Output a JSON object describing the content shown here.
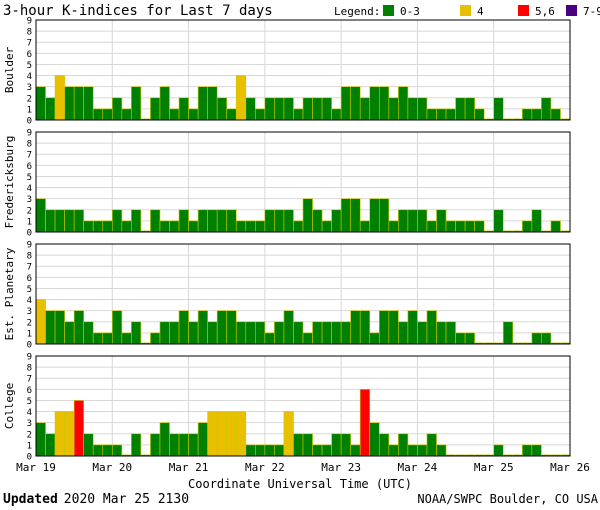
{
  "chart_data": {
    "type": "bar",
    "title": "3-hour K-indices for Last 7 days",
    "legend": {
      "label": "Legend:",
      "placement": "top-right",
      "entries": [
        {
          "label": "0-3",
          "color": "#008000"
        },
        {
          "label": "4",
          "color": "#e8c000"
        },
        {
          "label": "5,6",
          "color": "#ff0000"
        },
        {
          "label": "7-9",
          "color": "#4b0082"
        }
      ]
    },
    "ylim": [
      0,
      9
    ],
    "y_ticks": [
      "0",
      "1",
      "2",
      "3",
      "4",
      "5",
      "6",
      "7",
      "8",
      "9"
    ],
    "x_ticks": [
      "Mar 19",
      "Mar 20",
      "Mar 21",
      "Mar 22",
      "Mar 23",
      "Mar 24",
      "Mar 25",
      "Mar 26"
    ],
    "xlabel": "Coordinate Universal Time (UTC)",
    "bins_per_day": 8,
    "grid": true,
    "panels": [
      {
        "name": "Boulder",
        "values": [
          3,
          2,
          4,
          3,
          3,
          3,
          1,
          1,
          2,
          1,
          3,
          0,
          2,
          3,
          1,
          2,
          1,
          3,
          3,
          2,
          1,
          4,
          2,
          1,
          2,
          2,
          2,
          1,
          2,
          2,
          2,
          1,
          3,
          3,
          2,
          3,
          3,
          2,
          3,
          2,
          2,
          1,
          1,
          1,
          2,
          2,
          1,
          0,
          2,
          0,
          0,
          1,
          1,
          2,
          1,
          0
        ]
      },
      {
        "name": "Fredericksburg",
        "values": [
          3,
          2,
          2,
          2,
          2,
          1,
          1,
          1,
          2,
          1,
          2,
          0,
          2,
          1,
          1,
          2,
          1,
          2,
          2,
          2,
          2,
          1,
          1,
          1,
          2,
          2,
          2,
          1,
          3,
          2,
          1,
          2,
          3,
          3,
          1,
          3,
          3,
          1,
          2,
          2,
          2,
          1,
          2,
          1,
          1,
          1,
          1,
          0,
          2,
          0,
          0,
          1,
          2,
          0,
          1,
          0
        ]
      },
      {
        "name": "Est. Planetary",
        "values": [
          4,
          3,
          3,
          2,
          3,
          2,
          1,
          1,
          3,
          1,
          2,
          0,
          1,
          2,
          2,
          3,
          2,
          3,
          2,
          3,
          3,
          2,
          2,
          2,
          1,
          2,
          3,
          2,
          1,
          2,
          2,
          2,
          2,
          3,
          3,
          1,
          3,
          3,
          2,
          3,
          2,
          3,
          2,
          2,
          1,
          1,
          0,
          0,
          0,
          2,
          0,
          0,
          1,
          1,
          0,
          0
        ]
      },
      {
        "name": "College",
        "values": [
          3,
          2,
          4,
          4,
          5,
          2,
          1,
          1,
          1,
          0,
          2,
          0,
          2,
          3,
          2,
          2,
          2,
          3,
          4,
          4,
          4,
          4,
          1,
          1,
          1,
          1,
          4,
          2,
          2,
          1,
          1,
          2,
          2,
          1,
          6,
          3,
          2,
          1,
          2,
          1,
          1,
          2,
          1,
          0,
          0,
          0,
          0,
          0,
          1,
          0,
          0,
          1,
          1,
          0,
          0,
          0
        ]
      }
    ]
  },
  "footer": {
    "updated_label": "Updated",
    "updated_value": "2020 Mar 25 2130",
    "source": "NOAA/SWPC Boulder, CO USA"
  }
}
